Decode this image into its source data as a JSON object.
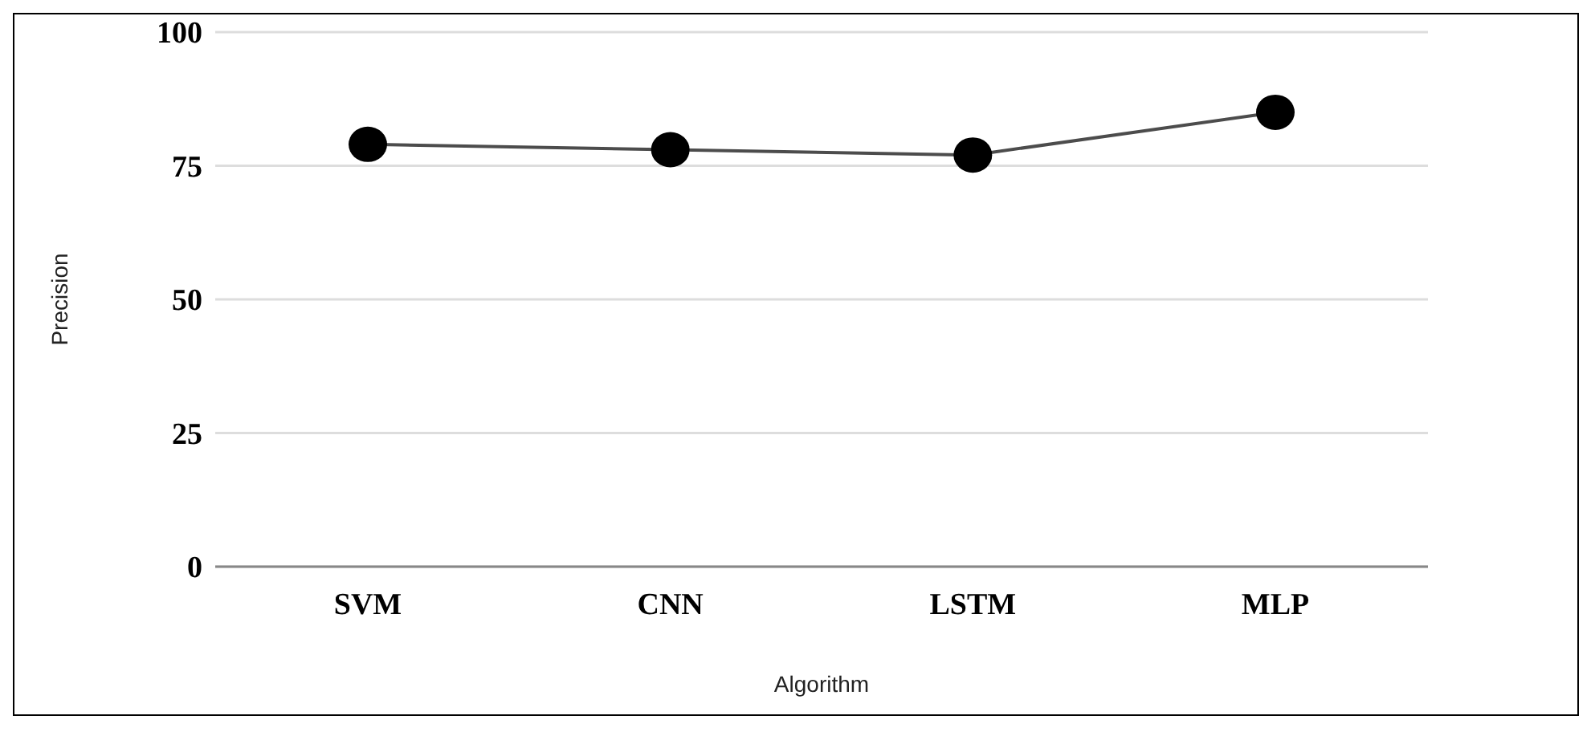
{
  "chart_data": {
    "type": "line",
    "xlabel": "Algorithm",
    "ylabel": "Precision",
    "categories": [
      "SVM",
      "CNN",
      "LSTM",
      "MLP"
    ],
    "series": [
      {
        "color": "#000000",
        "values": [
          79,
          78,
          77,
          85
        ]
      }
    ],
    "ylim": [
      0,
      100
    ],
    "yticks": [
      0,
      25,
      50,
      75,
      100
    ],
    "grid": "y",
    "marker": "circle",
    "line_style": "solid",
    "legend": false
  }
}
